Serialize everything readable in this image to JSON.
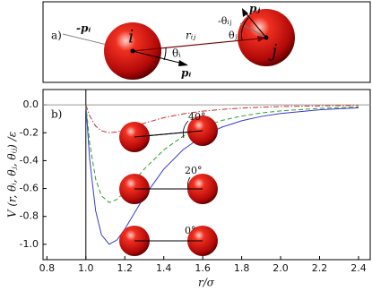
{
  "diagram": {
    "panel_label": "a)",
    "sphere_i": "i",
    "sphere_j": "j",
    "minus_p_i": "-pᵢ",
    "r_ij": "rᵢⱼ",
    "theta_i": "θᵢ",
    "p_i": "pᵢ",
    "minus_theta_ij": "-θᵢⱼ",
    "p_j": "pⱼ",
    "theta_j": "θⱼ"
  },
  "chart_data": {
    "type": "line",
    "panel_label": "b)",
    "x_label": "r/σ",
    "y_label": "V (r, θᵢ, θⱼ, θᵢⱼ) /ε",
    "x": [
      1.0,
      1.02,
      1.05,
      1.08,
      1.12,
      1.16,
      1.2,
      1.25,
      1.3,
      1.4,
      1.5,
      1.6,
      1.7,
      1.8,
      1.9,
      2.0,
      2.2,
      2.4
    ],
    "series": [
      {
        "name": "0°",
        "color": "#3a3ac8",
        "style": "solid",
        "values": [
          0,
          -0.398,
          -0.758,
          -0.932,
          -1.0,
          -0.968,
          -0.891,
          -0.774,
          -0.657,
          -0.461,
          -0.32,
          -0.224,
          -0.159,
          -0.114,
          -0.083,
          -0.062,
          -0.035,
          -0.021
        ]
      },
      {
        "name": "20°",
        "color": "#2ea02e",
        "style": "dashed",
        "values": [
          0,
          -0.279,
          -0.531,
          -0.652,
          -0.7,
          -0.678,
          -0.624,
          -0.542,
          -0.46,
          -0.323,
          -0.224,
          -0.157,
          -0.111,
          -0.08,
          -0.058,
          -0.043,
          -0.025,
          -0.015
        ]
      },
      {
        "name": "40°",
        "color": "#c83030",
        "style": "dashdot",
        "values": [
          0,
          -0.08,
          -0.152,
          -0.186,
          -0.2,
          -0.194,
          -0.178,
          -0.155,
          -0.131,
          -0.092,
          -0.064,
          -0.045,
          -0.032,
          -0.023,
          -0.017,
          -0.012,
          -0.007,
          -0.004
        ]
      }
    ],
    "xlim": [
      0.78,
      2.46
    ],
    "ylim": [
      -1.11,
      0.11
    ],
    "xticks": [
      0.8,
      {
        "value": 1.0,
        "label": "1.0"
      },
      1.2,
      1.4,
      1.6,
      1.8,
      {
        "value": 2.0,
        "label": "2.0"
      },
      2.2,
      2.4
    ],
    "yticks": [
      {
        "value": 0,
        "label": "0.0"
      },
      -0.2,
      -0.4,
      -0.6,
      -0.8,
      {
        "value": -1.0,
        "label": "-1.0"
      }
    ]
  }
}
